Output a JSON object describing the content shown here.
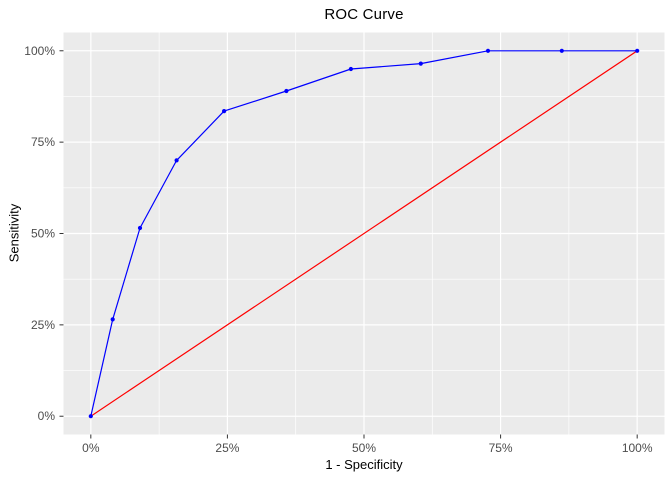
{
  "chart_data": {
    "type": "line",
    "title": "ROC Curve",
    "xlabel": "1 - Specificity",
    "ylabel": "Sensitivity",
    "xlim": [
      0,
      100
    ],
    "ylim": [
      0,
      100
    ],
    "grid": "on",
    "legend": "none",
    "x_tick_values": [
      0,
      25,
      50,
      75,
      100
    ],
    "x_tick_labels": [
      "0%",
      "25%",
      "50%",
      "75%",
      "100%"
    ],
    "y_tick_values": [
      0,
      25,
      50,
      75,
      100
    ],
    "y_tick_labels": [
      "0%",
      "25%",
      "50%",
      "75%",
      "100%"
    ],
    "x_minor_tick_values": [
      12.5,
      37.5,
      62.5,
      87.5
    ],
    "y_minor_tick_values": [
      12.5,
      37.5,
      62.5,
      87.5
    ],
    "series": [
      {
        "name": "ROC curve",
        "type": "line",
        "color": "#0000FF",
        "markers": true,
        "x": [
          0,
          4,
          9,
          15.7,
          24.4,
          35.8,
          47.6,
          60.4,
          72.7,
          86.2,
          100
        ],
        "y": [
          0,
          26.5,
          51.5,
          70,
          83.5,
          89,
          95,
          96.5,
          100,
          100,
          100
        ]
      },
      {
        "name": "Reference diagonal",
        "type": "line",
        "color": "#FF0000",
        "markers": false,
        "x": [
          0,
          100
        ],
        "y": [
          0,
          100
        ]
      }
    ],
    "colors": {
      "panel_background": "#EBEBEB",
      "gridline": "#FFFFFF",
      "axis_text": "#4D4D4D",
      "tick_mark": "#333333",
      "title_text": "#000000"
    }
  }
}
